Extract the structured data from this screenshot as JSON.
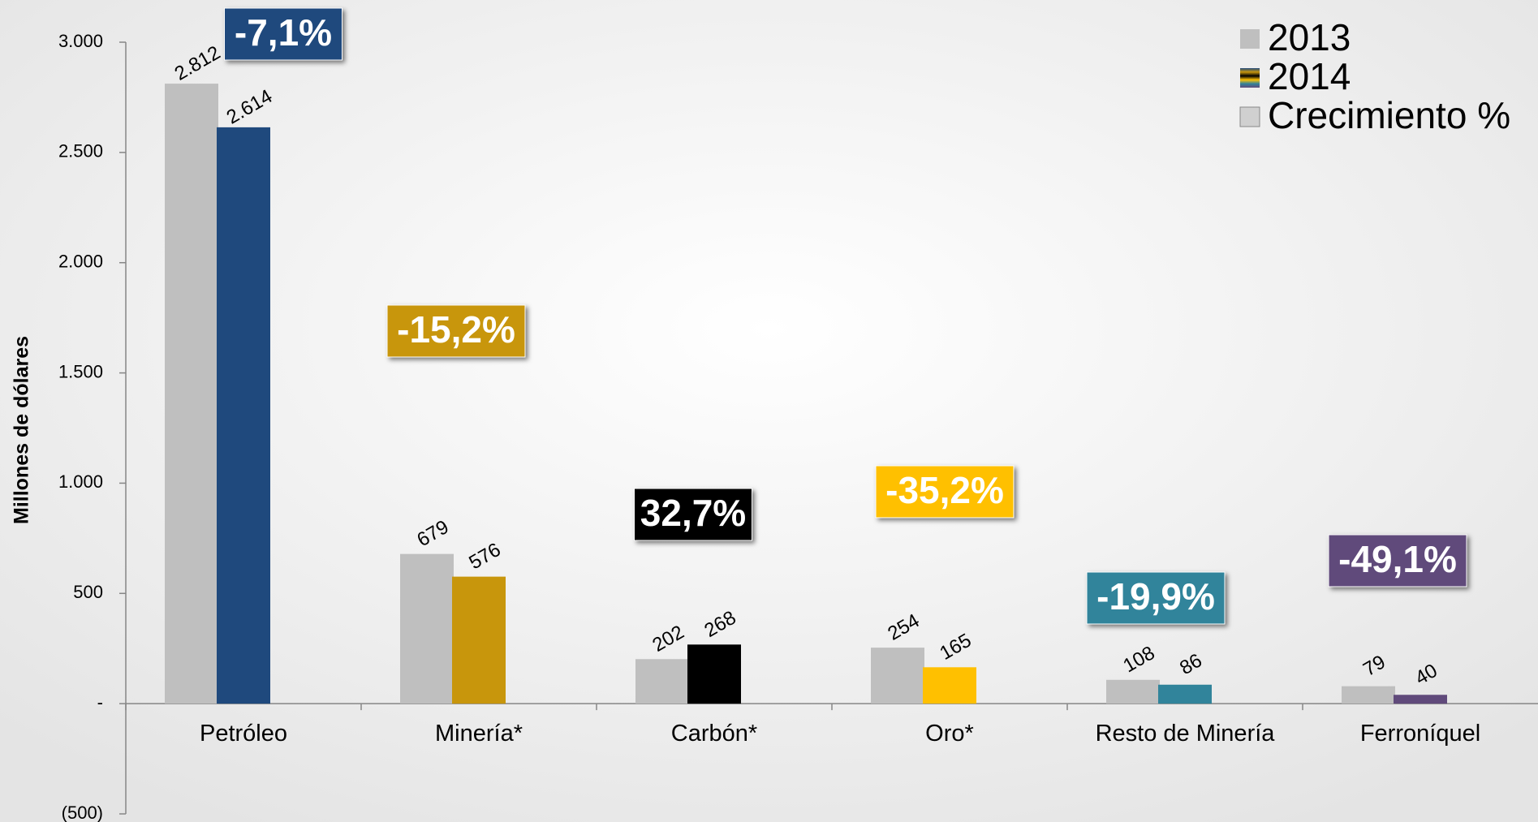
{
  "chart_data": {
    "type": "bar",
    "y_label": "Millones de dólares",
    "categories": [
      "Petróleo",
      "Minería*",
      "Carbón*",
      "Oro*",
      "Resto de Minería",
      "Ferroníquel"
    ],
    "series": [
      {
        "name": "2013",
        "color": "#bfbfbf",
        "values": [
          2812,
          679,
          202,
          254,
          108,
          79
        ],
        "value_labels": [
          "2.812",
          "679",
          "202",
          "254",
          "108",
          "79"
        ]
      },
      {
        "name": "2014",
        "colors": [
          "#1f497d",
          "#c8960c",
          "#000000",
          "#ffc000",
          "#31849b",
          "#604a7b"
        ],
        "values": [
          2614,
          576,
          268,
          165,
          86,
          40
        ],
        "value_labels": [
          "2.614",
          "576",
          "268",
          "165",
          "86",
          "40"
        ]
      }
    ],
    "growth": {
      "name": "Crecimiento %",
      "values": [
        -7.1,
        -15.2,
        32.7,
        -35.2,
        -19.9,
        -49.1
      ],
      "value_labels": [
        "-7,1%",
        "-15,2%",
        "32,7%",
        "-35,2%",
        "-19,9%",
        "-49,1%"
      ],
      "colors": [
        "#1f497d",
        "#c8960c",
        "#000000",
        "#ffc000",
        "#31849b",
        "#604a7b"
      ]
    },
    "ylim": [
      -500,
      3000
    ],
    "yticks": [
      {
        "value": -500,
        "label": "(500)"
      },
      {
        "value": 0,
        "label": "-"
      },
      500,
      {
        "value": 1000,
        "label": "1.000"
      },
      {
        "value": 1500,
        "label": "1.500"
      },
      {
        "value": 2000,
        "label": "2.000"
      },
      {
        "value": 2500,
        "label": "2.500"
      },
      {
        "value": 3000,
        "label": "3.000"
      }
    ],
    "legend": "top-right"
  }
}
